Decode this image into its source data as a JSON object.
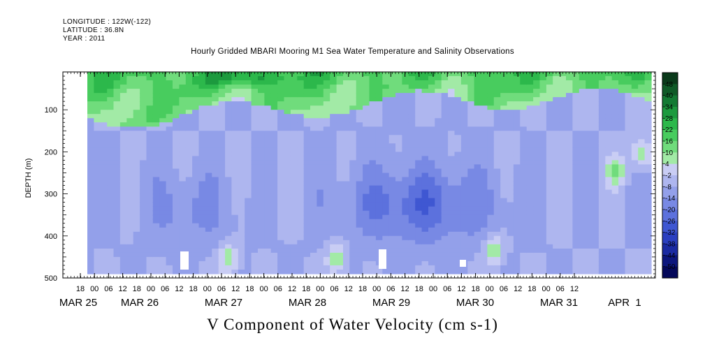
{
  "header": {
    "longitude": "LONGITUDE : 122W(-122)",
    "latitude": "LATITUDE : 36.8N",
    "year": "YEAR : 2011"
  },
  "chart_data": {
    "type": "heatmap",
    "title": "Hourly Gridded MBARI Mooring M1 Sea Water Temperature and Salinity Observations",
    "caption": "V Component of Water Velocity (cm s-1)",
    "ylabel": "DEPTH (m)",
    "y_ticks": [
      100,
      200,
      300,
      400,
      500
    ],
    "ylim": [
      500,
      10
    ],
    "y_inverted": true,
    "x_range": [
      "2011-03-25T12:00",
      "2011-04-01T16:00"
    ],
    "x_hour_ticks": [
      "18",
      "00",
      "06",
      "12",
      "18",
      "00",
      "06",
      "12",
      "18",
      "00",
      "06",
      "12",
      "18",
      "00",
      "06",
      "12",
      "18",
      "00",
      "06",
      "12",
      "18",
      "00",
      "06",
      "12",
      "18",
      "00",
      "06",
      "12",
      "18",
      "00",
      "06",
      "12",
      "18",
      "00",
      "06",
      "12"
    ],
    "x_date_labels": [
      "MAR 25",
      "MAR 26",
      "MAR 27",
      "MAR 28",
      "MAR 29",
      "MAR 30",
      "MAR 31",
      "APR  1"
    ],
    "colorbar": {
      "levels": [
        48,
        40,
        34,
        28,
        22,
        16,
        10,
        4,
        -2,
        -8,
        -14,
        -20,
        -26,
        -32,
        -38,
        -44,
        -50
      ],
      "colors": [
        "#0a3a1a",
        "#0f5a27",
        "#137a33",
        "#1c9a3e",
        "#2cb84b",
        "#48cc5e",
        "#70dc7c",
        "#a2eaa6",
        "#c9cdf4",
        "#aeb6ef",
        "#93a0ea",
        "#7889e4",
        "#5c71dd",
        "#3f57d2",
        "#2a3fc0",
        "#1a2aa2",
        "#0c167d",
        "#04085a"
      ]
    },
    "data_summary": {
      "depth_range_m": [
        10,
        490
      ],
      "surface_layer": "positive (green) velocities from 10 m to about 80-150 m depth, Mar 25 to Mar 28",
      "interior": "weakly negative (blue) velocities dominate below 150 m",
      "strongest_negative": "about -26 to -32 cm s-1 near 250-400 m around Mar 29-30",
      "deep_positive_patches": "near 450 m on Mar 27, Mar 28 and Mar 30; near 200-300 m on Apr 1"
    }
  }
}
